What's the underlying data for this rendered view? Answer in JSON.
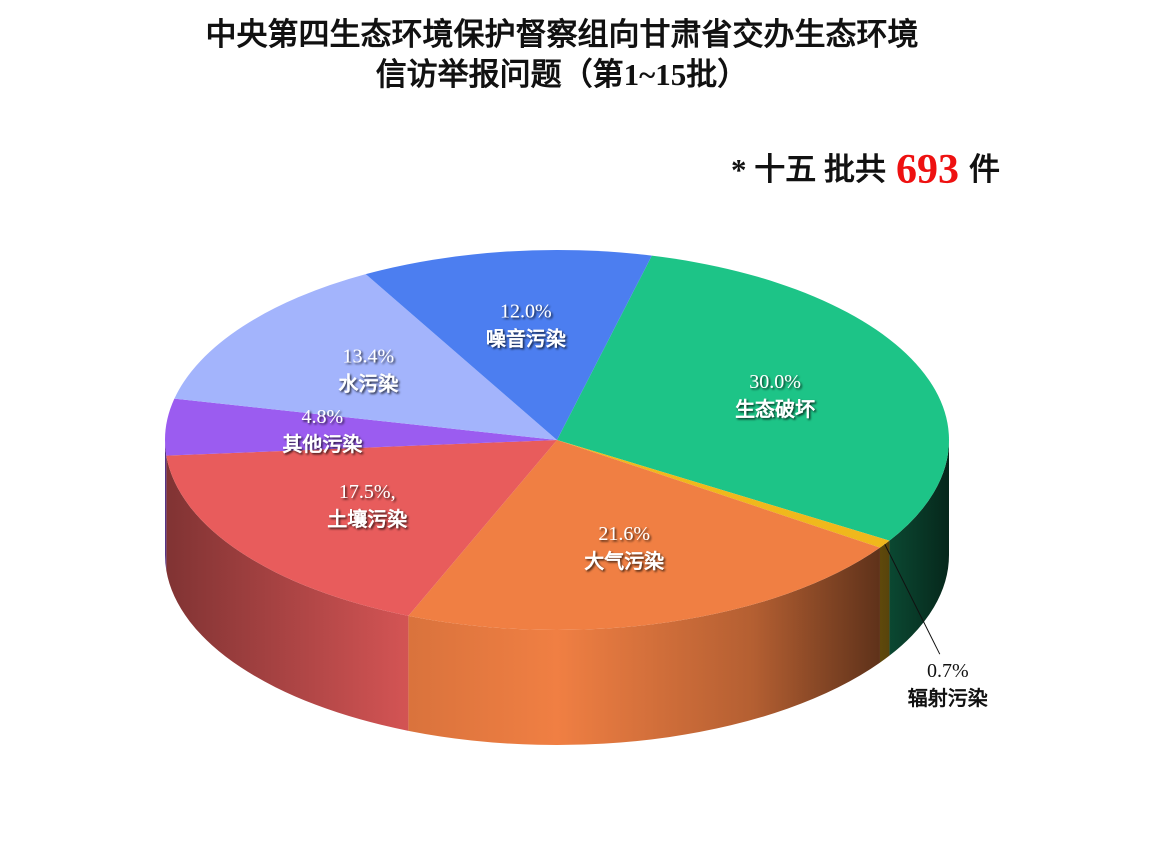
{
  "chart_data": {
    "type": "pie3d",
    "title": [
      "中央第四生态环境保护督察组向甘肃省交办生态环境",
      "信访举报问题（第1~15批）"
    ],
    "annotation": {
      "prefix": "* 十五 批共",
      "total": 693,
      "suffix": "件"
    },
    "categories": [
      "生态破坏",
      "辐射污染",
      "大气污染",
      "土壤污染",
      "其他污染",
      "水污染",
      "噪音污染"
    ],
    "values": [
      30.0,
      0.7,
      21.6,
      17.5,
      4.8,
      13.4,
      12.0
    ],
    "value_labels": [
      "30.0%",
      "0.7%",
      "21.6%",
      "17.5%,",
      "4.8%",
      "13.4%",
      "12.0%"
    ],
    "colors": [
      "#1dc487",
      "#f0b81c",
      "#f07f43",
      "#e85c5c",
      "#9b5cf0",
      "#a3b4fc",
      "#4c7ef0"
    ]
  }
}
